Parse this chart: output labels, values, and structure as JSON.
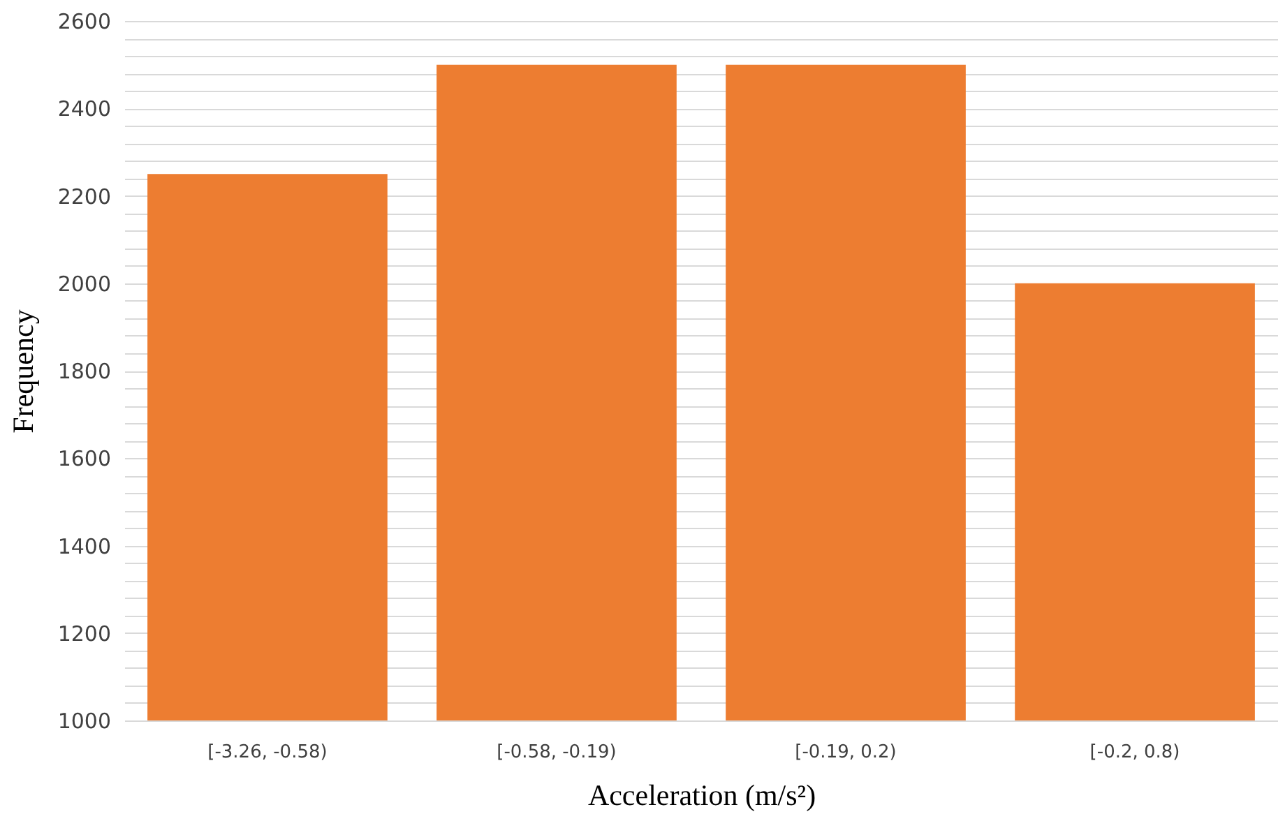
{
  "chart_data": {
    "type": "bar",
    "xlabel": "Acceleration (m/s²)",
    "ylabel": "Frequency",
    "categories": [
      "[-3.26, -0.58)",
      "[-0.58, -0.19)",
      "[-0.19, 0.2)",
      "[-0.2, 0.8)"
    ],
    "values": [
      2250,
      2500,
      2500,
      2000
    ],
    "color": "#ed7d31",
    "ylim": [
      1000,
      2600
    ],
    "yticks": [
      1000,
      {
        "value": 1040,
        "label": null
      },
      {
        "value": 1080,
        "label": null
      },
      {
        "value": 1120,
        "label": null
      },
      {
        "value": 1160,
        "label": null
      },
      1200,
      {
        "value": 1240,
        "label": null
      },
      {
        "value": 1280,
        "label": null
      },
      {
        "value": 1320,
        "label": null
      },
      {
        "value": 1360,
        "label": null
      },
      1400,
      {
        "value": 1440,
        "label": null
      },
      {
        "value": 1480,
        "label": null
      },
      {
        "value": 1520,
        "label": null
      },
      {
        "value": 1560,
        "label": null
      },
      1600,
      {
        "value": 1640,
        "label": null
      },
      {
        "value": 1680,
        "label": null
      },
      {
        "value": 1720,
        "label": null
      },
      {
        "value": 1760,
        "label": null
      },
      1800,
      {
        "value": 1840,
        "label": null
      },
      {
        "value": 1880,
        "label": null
      },
      {
        "value": 1920,
        "label": null
      },
      {
        "value": 1960,
        "label": null
      },
      2000,
      {
        "value": 2040,
        "label": null
      },
      {
        "value": 2080,
        "label": null
      },
      {
        "value": 2120,
        "label": null
      },
      {
        "value": 2160,
        "label": null
      },
      2200,
      {
        "value": 2240,
        "label": null
      },
      {
        "value": 2280,
        "label": null
      },
      {
        "value": 2320,
        "label": null
      },
      {
        "value": 2360,
        "label": null
      },
      2400,
      {
        "value": 2440,
        "label": null
      },
      {
        "value": 2480,
        "label": null
      },
      {
        "value": 2520,
        "label": null
      },
      {
        "value": 2560,
        "label": null
      },
      2600
    ],
    "grid": "y"
  }
}
